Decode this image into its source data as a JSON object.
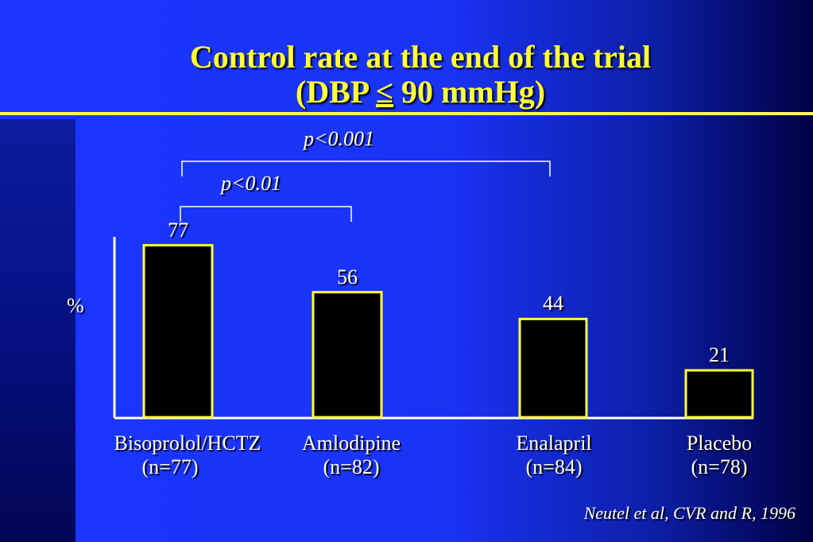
{
  "title": {
    "line1": "Control rate at the end of the trial",
    "line2_pre": "(DBP ",
    "line2_sym": "≤",
    "line2_post": " 90 mmHg)"
  },
  "colors": {
    "bar_fill": "#000000",
    "bar_stroke": "#ffff33",
    "title": "#ffff33",
    "text": "#ffffff"
  },
  "chart_data": {
    "type": "bar",
    "ylabel": "%",
    "categories": [
      "Bisoprolol/HCTZ",
      "Amlodipine",
      "Enalapril",
      "Placebo"
    ],
    "category_n": [
      "(n=77)",
      "(n=82)",
      "(n=84)",
      "(n=78)"
    ],
    "values": [
      77,
      56,
      44,
      21
    ],
    "ylim": [
      0,
      100
    ],
    "grid": false,
    "annotations": [
      {
        "text": "p<0.001",
        "from": "Bisoprolol/HCTZ",
        "to": "Enalapril"
      },
      {
        "text": "p<0.01",
        "from": "Bisoprolol/HCTZ",
        "to": "Amlodipine"
      }
    ]
  },
  "citation": "Neutel et al, CVR and R, 1996"
}
